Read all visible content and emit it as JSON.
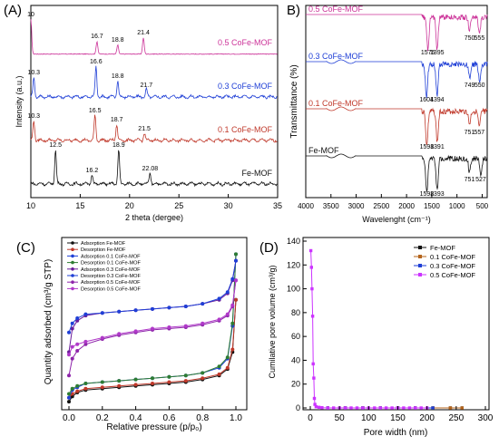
{
  "chart_data": [
    {
      "panel": "(A)",
      "type": "line",
      "xlabel": "2 theta (dergee)",
      "ylabel": "Intensity (a.u.)",
      "xlim": [
        10,
        35
      ],
      "xticks": [
        10,
        15,
        20,
        25,
        30,
        35
      ],
      "grid": false,
      "series": [
        {
          "name": "0.5 CoFe-MOF",
          "color": "#cc3399",
          "offset": 3,
          "peaks": [
            [
              10.0,
              0.95
            ],
            [
              16.7,
              0.35
            ],
            [
              18.8,
              0.25
            ],
            [
              21.4,
              0.45
            ]
          ],
          "peak_labels": [
            "10",
            "16.7",
            "18.8",
            "21.4"
          ]
        },
        {
          "name": "0.3 CoFe-MOF",
          "color": "#1f3fd6",
          "offset": 2,
          "peaks": [
            [
              10.3,
              0.55
            ],
            [
              16.6,
              0.85
            ],
            [
              18.8,
              0.45
            ],
            [
              21.7,
              0.2
            ]
          ],
          "peak_labels": [
            "10.3",
            "16.6",
            "18.8",
            "21.7"
          ]
        },
        {
          "name": "0.1 CoFe-MOF",
          "color": "#c0392b",
          "offset": 1,
          "peaks": [
            [
              10.3,
              0.55
            ],
            [
              16.5,
              0.7
            ],
            [
              18.7,
              0.45
            ],
            [
              21.5,
              0.2
            ]
          ],
          "peak_labels": [
            "10.3",
            "16.5",
            "18.7",
            "21.5"
          ]
        },
        {
          "name": "Fe-MOF",
          "color": "#111111",
          "offset": 0,
          "peaks": [
            [
              12.5,
              0.95
            ],
            [
              16.2,
              0.25
            ],
            [
              18.9,
              0.95
            ],
            [
              22.08,
              0.3
            ]
          ],
          "peak_labels": [
            "12.5",
            "16.2",
            "18.9",
            "22.08"
          ]
        }
      ]
    },
    {
      "panel": "B)",
      "type": "line",
      "xlabel": "Wavelenght (cm⁻¹)",
      "ylabel": "Transmittance (%)",
      "xlim": [
        4000,
        400
      ],
      "xticks": [
        4000,
        3500,
        3000,
        2500,
        2000,
        1500,
        1000,
        500
      ],
      "grid": false,
      "series": [
        {
          "name": "0.5 CoFe-MOF",
          "color": "#cc3399",
          "offset": 3,
          "bands": [
            1576,
            1395,
            750,
            555
          ]
        },
        {
          "name": "0.3 CoFe-MOF",
          "color": "#1f3fd6",
          "offset": 2,
          "bands": [
            1604,
            1394,
            749,
            550
          ]
        },
        {
          "name": "0.1 CoFe-MOF",
          "color": "#c0392b",
          "offset": 1,
          "bands": [
            1598,
            1391,
            751,
            557
          ]
        },
        {
          "name": "Fe-MOF",
          "color": "#111111",
          "offset": 0,
          "bands": [
            1598,
            1393,
            751,
            527
          ]
        }
      ]
    },
    {
      "panel": "(C)",
      "type": "line",
      "xlabel": "Relative pressure (p/p₀)",
      "ylabel": "Quantity adsorbed (cm³/g STP)",
      "xlim": [
        0,
        1.0
      ],
      "xticks": [
        0.0,
        0.2,
        0.4,
        0.6,
        0.8,
        1.0
      ],
      "grid": false,
      "legend": "top-left",
      "x": [
        0.0,
        0.02,
        0.05,
        0.1,
        0.2,
        0.3,
        0.4,
        0.5,
        0.6,
        0.7,
        0.8,
        0.9,
        0.95,
        0.98,
        1.0
      ],
      "series": [
        {
          "name": "Adsorption Fe-MOF",
          "color": "#111111",
          "values": [
            2,
            6,
            9,
            11,
            12,
            13,
            14,
            15,
            16,
            17,
            19,
            22,
            27,
            40,
            80
          ]
        },
        {
          "name": "Desorption Fe-MOF",
          "color": "#c0392b",
          "values": [
            5,
            8,
            10,
            12,
            13,
            14,
            15,
            16,
            17,
            18,
            20,
            23,
            28,
            42,
            80
          ]
        },
        {
          "name": "Adsorption 0.1 CoFe-MOF",
          "color": "#1f3fd6",
          "values": [
            5,
            11,
            13,
            16,
            17,
            18,
            19,
            20,
            21,
            22,
            24,
            28,
            35,
            60,
            115
          ]
        },
        {
          "name": "Desorption 0.1 CoFe-MOF",
          "color": "#2e7d32",
          "values": [
            8,
            12,
            14,
            16,
            17,
            18,
            19,
            20,
            21,
            22,
            24,
            29,
            36,
            62,
            115
          ]
        },
        {
          "name": "Adsorption 0.3 CoFe-MOF",
          "color": "#6a1b9a",
          "values": [
            40,
            58,
            64,
            68,
            70,
            71,
            72,
            73,
            74,
            75,
            77,
            80,
            85,
            95,
            110
          ]
        },
        {
          "name": "Desorption 0.3 CoFe-MOF",
          "color": "#1f3fd6",
          "values": [
            55,
            62,
            66,
            69,
            70,
            71,
            72,
            73,
            74,
            75,
            77,
            81,
            86,
            96,
            110
          ]
        },
        {
          "name": "Adsorption 0.5 CoFe-MOF",
          "color": "#8e24aa",
          "values": [
            22,
            35,
            41,
            46,
            50,
            53,
            55,
            57,
            58,
            59,
            61,
            64,
            68,
            75,
            95
          ]
        },
        {
          "name": "Desorption 0.5 CoFe-MOF",
          "color": "#b039c9",
          "values": [
            38,
            44,
            46,
            48,
            51,
            54,
            56,
            58,
            59,
            60,
            62,
            65,
            69,
            76,
            95
          ]
        }
      ]
    },
    {
      "panel": "(D)",
      "type": "line",
      "xlabel": "Pore width (nm)",
      "ylabel": "Cumilative pore volume (cm³/g)",
      "xlim": [
        0,
        300
      ],
      "ylim": [
        0,
        140
      ],
      "xticks": [
        0,
        50,
        100,
        150,
        200,
        250,
        300
      ],
      "yticks": [
        0,
        20,
        40,
        60,
        80,
        100,
        120,
        140
      ],
      "grid": false,
      "legend": "top-right",
      "series": [
        {
          "name": "Fe-MOF",
          "color": "#111111",
          "x": [
            30,
            60,
            90,
            120,
            150,
            180,
            210,
            240,
            260
          ],
          "values": [
            0,
            0,
            0,
            0,
            0,
            0,
            0,
            0,
            0
          ]
        },
        {
          "name": "0.1 CoFe-MOF",
          "color": "#b5651d",
          "x": [
            30,
            60,
            90,
            120,
            150,
            180,
            210,
            240,
            260
          ],
          "values": [
            0,
            0,
            0,
            0,
            0,
            0,
            0,
            0,
            0
          ]
        },
        {
          "name": "0.3 CoFe-MOF",
          "color": "#1f3fd6",
          "x": [
            30,
            60,
            90,
            120,
            150,
            180,
            210
          ],
          "values": [
            0,
            0,
            0,
            0,
            0,
            0,
            0
          ]
        },
        {
          "name": "0.5 CoFe-MOF",
          "color": "#cc33ff",
          "x": [
            1,
            2,
            3,
            4,
            5,
            6,
            7,
            8,
            10,
            15,
            20,
            30,
            40,
            50,
            60,
            70,
            80,
            90,
            100,
            110,
            120,
            130,
            140,
            150,
            160,
            170,
            180,
            190,
            200
          ],
          "values": [
            132,
            118,
            100,
            77,
            37,
            25,
            8,
            3,
            1,
            0.5,
            0.2,
            0,
            0,
            0,
            0,
            0,
            0,
            0,
            0,
            0,
            0,
            0,
            0,
            0,
            0,
            0,
            0,
            0,
            0
          ]
        }
      ]
    }
  ]
}
